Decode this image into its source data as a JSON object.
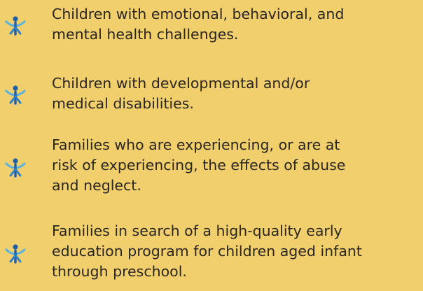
{
  "items": [
    {
      "lines": [
        "Children with emotional, behavioral, and",
        "mental health challenges."
      ]
    },
    {
      "lines": [
        "Children with developmental and/or",
        "medical disabilities."
      ]
    },
    {
      "lines": [
        "Families who are experiencing, or are at",
        "risk of experiencing, the effects of abuse",
        "and neglect."
      ]
    },
    {
      "lines": [
        "Families in search of a high-quality early",
        "education program for children aged infant",
        "through preschool."
      ]
    }
  ]
}
